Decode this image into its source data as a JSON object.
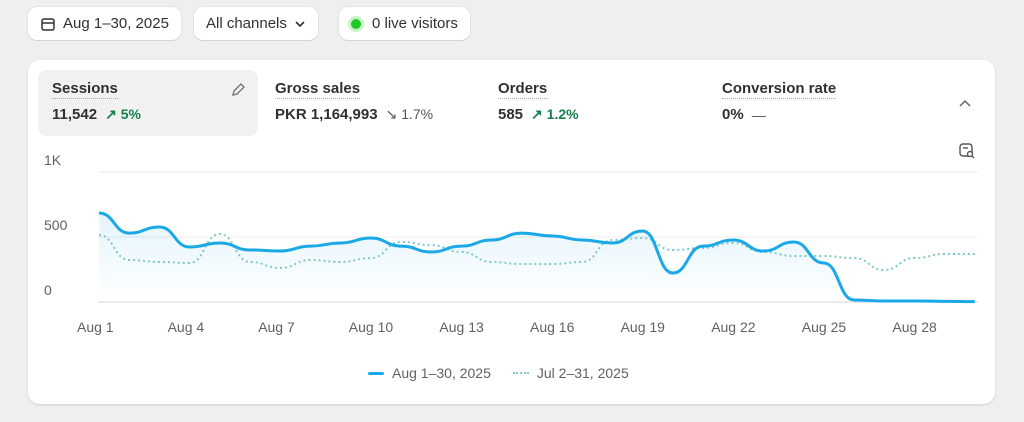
{
  "toolbar": {
    "date_range": "Aug 1–30, 2025",
    "channels": "All channels",
    "live": "0 live visitors"
  },
  "metrics": [
    {
      "label": "Sessions",
      "value": "11,542",
      "change": "5%",
      "dir": "up"
    },
    {
      "label": "Gross sales",
      "value": "PKR 1,164,993",
      "change": "1.7%",
      "dir": "down"
    },
    {
      "label": "Orders",
      "value": "585",
      "change": "1.2%",
      "dir": "up"
    },
    {
      "label": "Conversion rate",
      "value": "0%",
      "change": "—",
      "dir": "none"
    }
  ],
  "colors": {
    "current": "#1ba8e6",
    "previous": "#7fc8c8",
    "positive": "#14804a"
  },
  "chart_data": {
    "type": "line",
    "ylim": [
      0,
      1000
    ],
    "yticks": [
      "0",
      "500",
      "1K"
    ],
    "xticks": [
      "Aug 1",
      "Aug 4",
      "Aug 7",
      "Aug 10",
      "Aug 13",
      "Aug 16",
      "Aug 19",
      "Aug 22",
      "Aug 25",
      "Aug 28"
    ],
    "x": [
      1,
      2,
      3,
      4,
      5,
      6,
      7,
      8,
      9,
      10,
      11,
      12,
      13,
      14,
      15,
      16,
      17,
      18,
      19,
      20,
      21,
      22,
      23,
      24,
      25,
      26,
      27,
      28,
      29,
      30
    ],
    "series": [
      {
        "name": "Aug 1–30, 2025",
        "values": [
          685,
          530,
          577,
          423,
          454,
          400,
          392,
          430,
          454,
          492,
          430,
          385,
          430,
          477,
          530,
          508,
          477,
          454,
          546,
          223,
          430,
          477,
          392,
          462,
          300,
          15,
          8,
          8,
          5,
          3
        ]
      },
      {
        "name": "Jul 2–31, 2025",
        "values": [
          515,
          323,
          308,
          300,
          523,
          308,
          262,
          323,
          308,
          338,
          462,
          438,
          385,
          308,
          292,
          292,
          308,
          477,
          492,
          400,
          415,
          454,
          385,
          354,
          354,
          338,
          246,
          338,
          369,
          369
        ]
      }
    ]
  }
}
